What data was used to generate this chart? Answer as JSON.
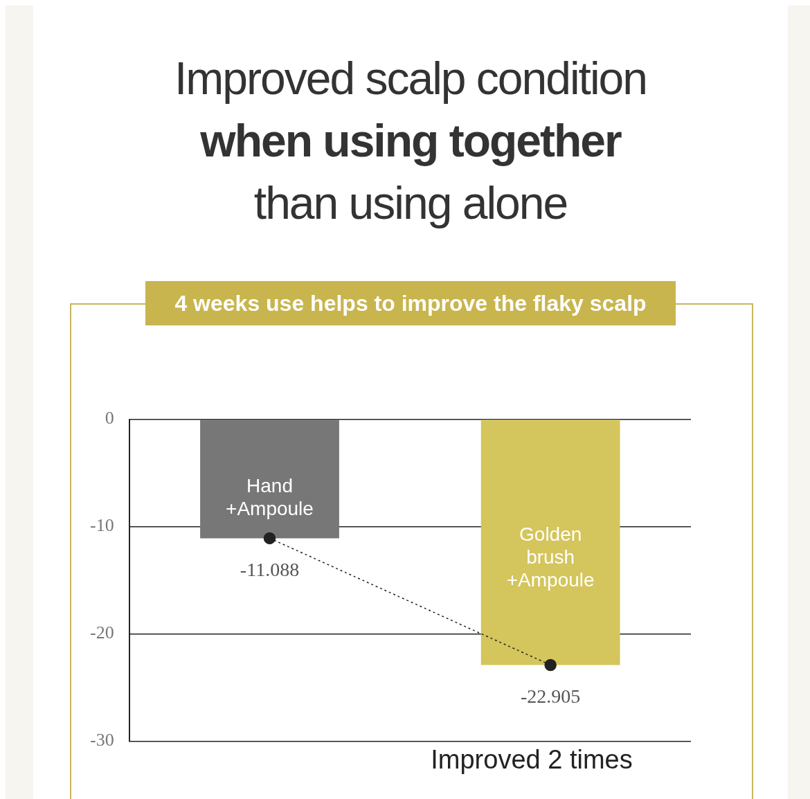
{
  "chart_data": {
    "type": "bar",
    "title": "Improved scalp condition\nwhen using together\nthan using alone",
    "subtitle": "4 weeks use helps to improve the flaky scalp",
    "categories": [
      "Hand\n+Ampoule",
      "Golden\nbrush\n+Ampoule"
    ],
    "series": [
      {
        "colors": [
          "#777777",
          "#d4c55c"
        ],
        "values": [
          -11.088,
          -22.905
        ]
      },
      {
        "type": "line",
        "color": "#222222",
        "marker": "circle",
        "line_style": "dotted",
        "values": [
          -11.088,
          -22.905
        ],
        "value_labels": [
          "-11.088",
          "-22.905"
        ]
      }
    ],
    "ylim": [
      -30,
      0
    ],
    "yticks": [
      0,
      -10,
      -20,
      -30
    ],
    "grid": "y",
    "legend": false,
    "tick_labels": "y",
    "annotations": [
      "Improved 2 times"
    ]
  }
}
